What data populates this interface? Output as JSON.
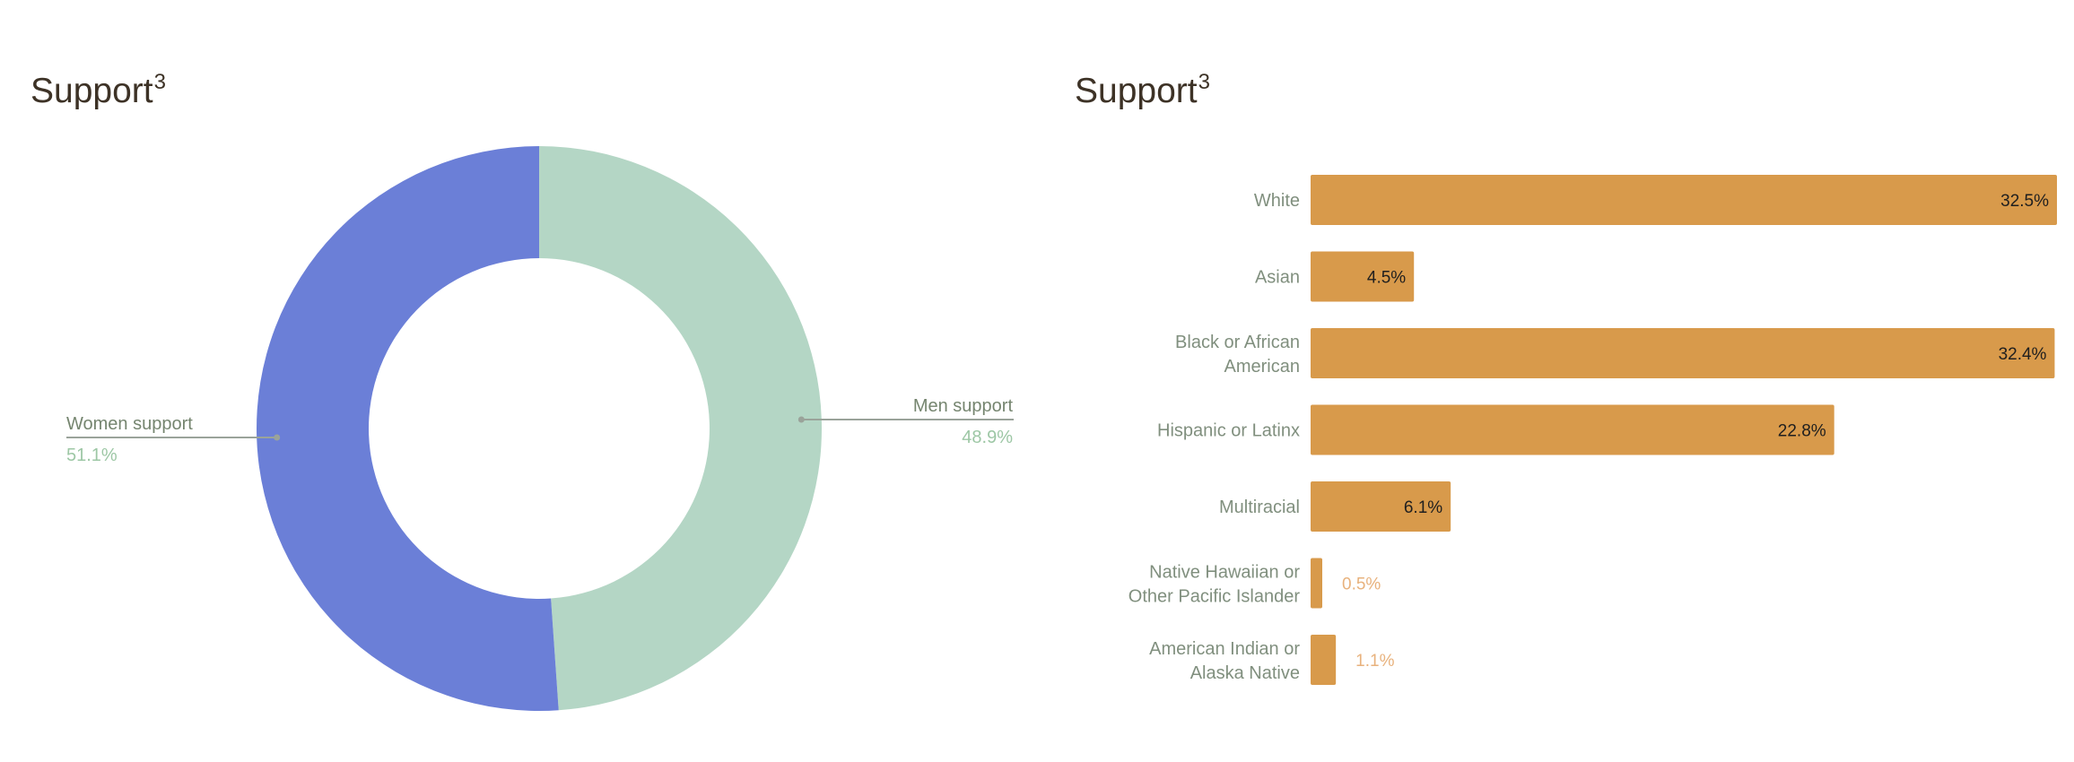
{
  "colors": {
    "women": "#6b7fd7",
    "men": "#b4d6c5",
    "bar": "#d89a4b",
    "leader": "#9aa39a"
  },
  "chart_data": [
    {
      "type": "pie",
      "variant": "donut",
      "title": "Support",
      "title_superscript": "3",
      "slices": [
        {
          "label": "Men support",
          "value": 48.9,
          "display": "48.9%"
        },
        {
          "label": "Women support",
          "value": 51.1,
          "display": "51.1%"
        }
      ]
    },
    {
      "type": "bar",
      "orientation": "horizontal",
      "title": "Support",
      "title_superscript": "3",
      "categories": [
        [
          "White"
        ],
        [
          "Asian"
        ],
        [
          "Black or African",
          "American"
        ],
        [
          "Hispanic or Latinx"
        ],
        [
          "Multiracial"
        ],
        [
          "Native Hawaiian or",
          "Other Pacific Islander"
        ],
        [
          "American Indian or",
          "Alaska Native"
        ]
      ],
      "values": [
        32.5,
        4.5,
        32.4,
        22.8,
        6.1,
        0.5,
        1.1
      ],
      "labels": [
        "32.5%",
        "4.5%",
        "32.4%",
        "22.8%",
        "6.1%",
        "0.5%",
        "1.1%"
      ],
      "xlim": [
        0,
        32.5
      ]
    }
  ]
}
